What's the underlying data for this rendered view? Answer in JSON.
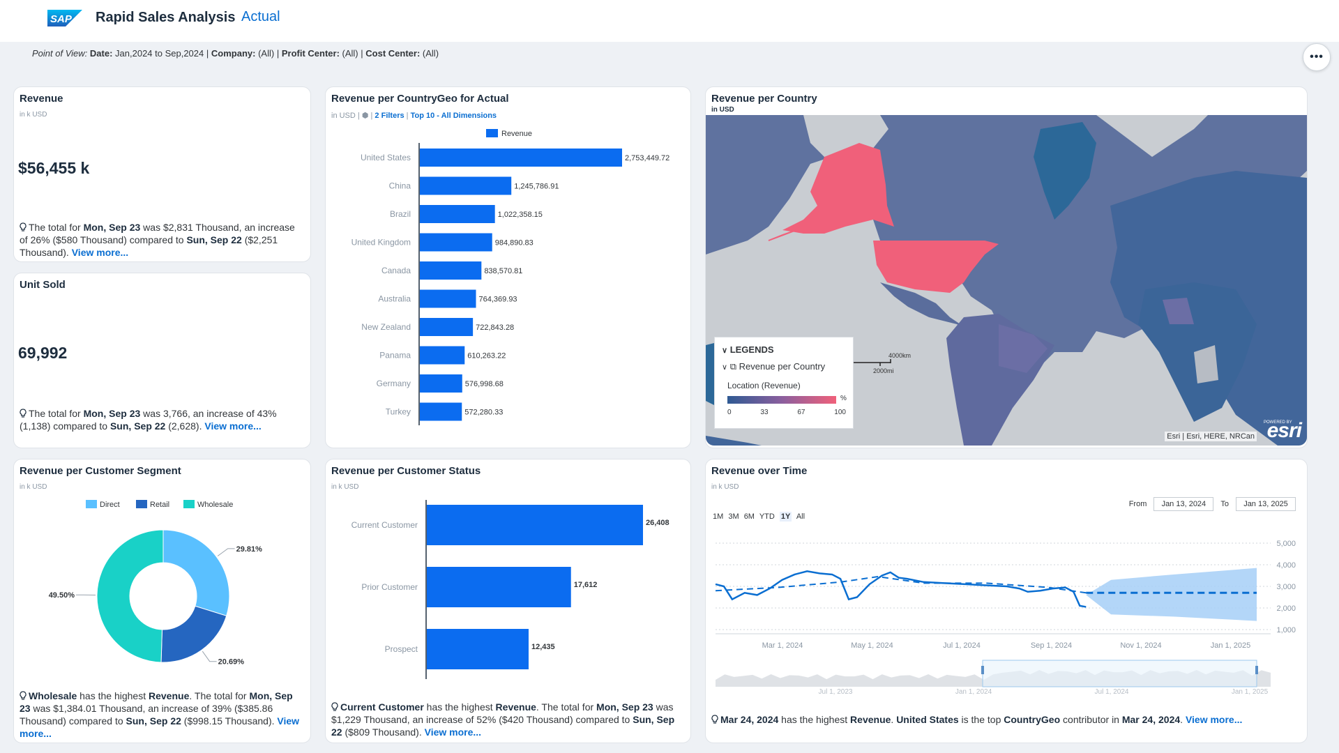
{
  "header": {
    "logo_text": "SAP",
    "title": "Rapid Sales Analysis",
    "version": "Actual",
    "more_label": "•••"
  },
  "pov": {
    "label": "Point of View:",
    "date_label": "Date:",
    "date_value": "Jan,2024 to Sep,2024",
    "company_label": "Company:",
    "company_value": "(All)",
    "profit_label": "Profit Center:",
    "profit_value": "(All)",
    "cost_label": "Cost Center:",
    "cost_value": "(All)",
    "sep": "|"
  },
  "revenue_card": {
    "title": "Revenue",
    "unit": "in k USD",
    "value": "$56,455 k",
    "insight": {
      "t1": "The total for ",
      "b1": "Mon, Sep 23",
      "t2": " was $2,831 Thousand, an increase of 26% ($580 Thousand) compared to ",
      "b2": "Sun, Sep 22",
      "t3": " ($2,251 Thousand). ",
      "link": "View more..."
    }
  },
  "unit_card": {
    "title": "Unit Sold",
    "value": "69,992",
    "insight": {
      "t1": "The total for ",
      "b1": "Mon, Sep 23",
      "t2": " was 3,766, an increase of 43% (1,138) compared to ",
      "b2": "Sun, Sep 22",
      "t3": " (2,628). ",
      "link": "View more..."
    }
  },
  "country_card": {
    "title": "Revenue per CountryGeo for Actual",
    "unit": "in USD",
    "sep": "|",
    "filters_link": "2 Filters",
    "top_link": "Top 10 - All Dimensions",
    "filter_icon": "filter-icon"
  },
  "map_card": {
    "title": "Revenue per Country",
    "unit": "in USD",
    "legend": {
      "header": "LEGENDS",
      "layer": "Revenue per Country",
      "location": "Location (Revenue)",
      "pct": "%",
      "ticks": [
        "0",
        "33",
        "67",
        "100"
      ]
    },
    "scale_km": "4000km",
    "scale_mi": "2000mi",
    "attribution": "Esri | Esri, HERE, NRCan",
    "esri_logo": "esri",
    "powered": "POWERED BY",
    "colors": {
      "low": "#3d5b93",
      "high": "#f0607a"
    }
  },
  "segment_card": {
    "title": "Revenue per Customer Segment",
    "unit": "in k USD",
    "insight": {
      "b1": "Wholesale",
      "t1": " has the highest ",
      "b2": "Revenue",
      "t2": ". The total for ",
      "b3": "Mon, Sep 23",
      "t3": " was $1,384.01 Thousand, an increase of 39% ($385.86 Thousand) compared to ",
      "b4": "Sun, Sep 22",
      "t4": " ($998.15 Thousand). ",
      "link": "View more..."
    }
  },
  "status_card": {
    "title": "Revenue per Customer Status",
    "unit": "in k USD",
    "insight": {
      "b1": "Current Customer",
      "t1": " has the highest ",
      "b2": "Revenue",
      "t2": ". The total for ",
      "b3": "Mon, Sep 23",
      "t3": " was $1,229 Thousand, an increase of 52% ($420 Thousand) compared to ",
      "b4": "Sun, Sep 22",
      "t4": " ($809 Thousand). ",
      "link": "View more..."
    }
  },
  "time_card": {
    "title": "Revenue over Time",
    "unit": "in k USD",
    "ranges": [
      "1M",
      "3M",
      "6M",
      "YTD",
      "1Y",
      "All"
    ],
    "selected_range": "1Y",
    "from_label": "From",
    "from_value": "Jan 13, 2024",
    "to_label": "To",
    "to_value": "Jan 13, 2025",
    "insight": {
      "b1": "Mar 24, 2024",
      "t1": " has the highest ",
      "b2": "Revenue",
      "t2": ". ",
      "b3": "United States",
      "t3": " is the top ",
      "b4": "CountryGeo",
      "t4": " contributor in ",
      "b5": "Mar 24, 2024",
      "t5": ". ",
      "link": "View more..."
    }
  },
  "chart_data": [
    {
      "id": "country",
      "type": "bar",
      "orientation": "horizontal",
      "legend": "Revenue",
      "categories": [
        "United States",
        "China",
        "Brazil",
        "United Kingdom",
        "Canada",
        "Australia",
        "New Zealand",
        "Panama",
        "Germany",
        "Turkey"
      ],
      "values": [
        2753449.72,
        1245786.91,
        1022358.15,
        984890.83,
        838570.81,
        764369.93,
        722843.28,
        610263.22,
        576998.68,
        572280.33
      ],
      "labels": [
        "2,753,449.72",
        "1,245,786.91",
        "1,022,358.15",
        "984,890.83",
        "838,570.81",
        "764,369.93",
        "722,843.28",
        "610,263.22",
        "576,998.68",
        "572,280.33"
      ],
      "color": "#0b6cf0"
    },
    {
      "id": "segment",
      "type": "pie",
      "donut": true,
      "categories": [
        "Direct",
        "Retail",
        "Wholesale"
      ],
      "values": [
        29.81,
        20.69,
        49.5
      ],
      "labels": [
        "29.81%",
        "20.69%",
        "49.50%"
      ],
      "colors": [
        "#5ac0ff",
        "#2566c0",
        "#19d1c7"
      ]
    },
    {
      "id": "status",
      "type": "bar",
      "orientation": "horizontal",
      "categories": [
        "Current Customer",
        "Prior Customer",
        "Prospect"
      ],
      "values": [
        26408,
        17612,
        12435
      ],
      "labels": [
        "26,408",
        "17,612",
        "12,435"
      ],
      "color": "#0b6cf0"
    },
    {
      "id": "time",
      "type": "line",
      "y_ticks": [
        "5,000",
        "4,000",
        "3,000",
        "2,000",
        "1,000"
      ],
      "ylim": [
        1000,
        5000
      ],
      "x_ticks": [
        "Mar 1, 2024",
        "May 1, 2024",
        "Jul 1, 2024",
        "Sep 1, 2024",
        "Nov 1, 2024",
        "Jan 1, 2025"
      ],
      "navigator_ticks": [
        "Jul 1, 2023",
        "Jan 1, 2024",
        "Jul 1, 2024",
        "Jan 1, 2025"
      ],
      "actual": [
        [
          0,
          3100
        ],
        [
          4,
          3000
        ],
        [
          8,
          2400
        ],
        [
          14,
          2700
        ],
        [
          20,
          2600
        ],
        [
          26,
          2900
        ],
        [
          32,
          3300
        ],
        [
          38,
          3550
        ],
        [
          44,
          3700
        ],
        [
          50,
          3600
        ],
        [
          56,
          3550
        ],
        [
          60,
          3350
        ],
        [
          64,
          2400
        ],
        [
          68,
          2500
        ],
        [
          74,
          3100
        ],
        [
          80,
          3500
        ],
        [
          84,
          3650
        ],
        [
          88,
          3400
        ],
        [
          92,
          3350
        ],
        [
          100,
          3200
        ],
        [
          110,
          3150
        ],
        [
          120,
          3100
        ],
        [
          130,
          3050
        ],
        [
          140,
          3000
        ],
        [
          146,
          2900
        ],
        [
          150,
          2750
        ],
        [
          156,
          2800
        ],
        [
          162,
          2900
        ],
        [
          168,
          2950
        ],
        [
          172,
          2750
        ],
        [
          175,
          2100
        ],
        [
          178,
          2050
        ]
      ],
      "forecast": [
        [
          178,
          2700
        ],
        [
          260,
          2700
        ]
      ],
      "forecast_upper": [
        [
          178,
          2600
        ],
        [
          190,
          3300
        ],
        [
          220,
          3550
        ],
        [
          260,
          3850
        ]
      ],
      "forecast_lower": [
        [
          178,
          2600
        ],
        [
          190,
          1700
        ],
        [
          220,
          1600
        ],
        [
          260,
          1400
        ]
      ],
      "trend": [
        [
          0,
          2800
        ],
        [
          30,
          2950
        ],
        [
          60,
          3200
        ],
        [
          78,
          3450
        ],
        [
          100,
          3150
        ],
        [
          130,
          3150
        ],
        [
          160,
          2950
        ],
        [
          178,
          2700
        ]
      ],
      "colors": {
        "line": "#0a6ed1",
        "band": "#a6cff7"
      }
    }
  ]
}
